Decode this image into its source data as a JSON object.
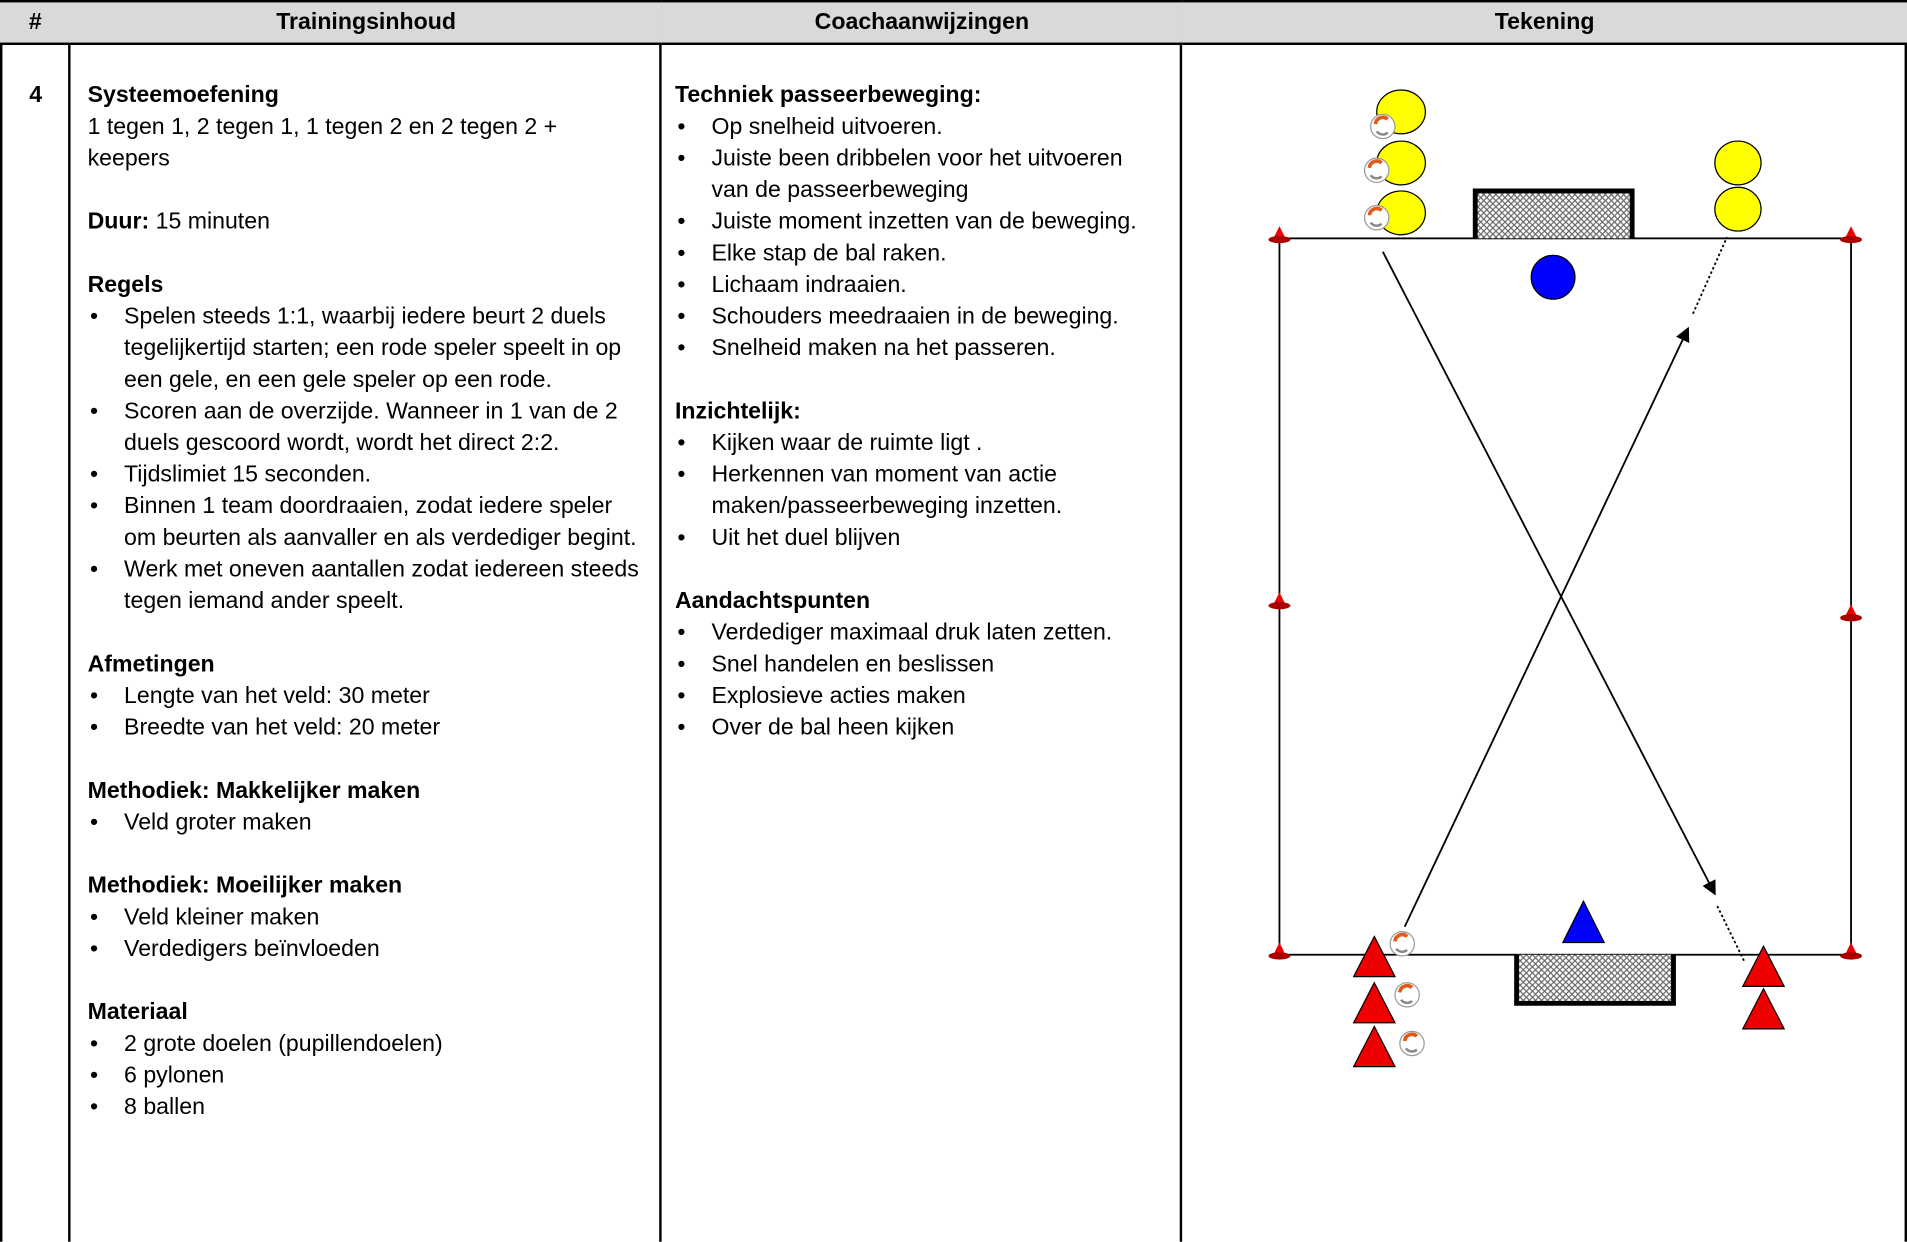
{
  "table": {
    "headers": [
      "#",
      "Trainingsinhoud",
      "Coachaanwijzingen",
      "Tekening"
    ],
    "row": {
      "number": "4",
      "training": {
        "title": "Systeemoefening",
        "subtitle": "1 tegen 1, 2 tegen 1, 1 tegen 2 en 2 tegen 2 + keepers",
        "duration_label": "Duur:",
        "duration": "15 minuten",
        "sections": [
          {
            "heading": "Regels",
            "items": [
              "Spelen steeds 1:1, waarbij iedere beurt 2 duels tegelijkertijd starten; een rode speler speelt in op een gele, en een gele speler op een rode.",
              "Scoren aan de overzijde. Wanneer in 1 van de 2 duels gescoord wordt, wordt het direct 2:2.",
              "Tijdslimiet 15 seconden.",
              "Binnen 1 team doordraaien, zodat iedere speler om beurten als aanvaller en als verdediger begint.",
              "Werk met oneven aantallen zodat iedereen steeds tegen iemand ander speelt."
            ]
          },
          {
            "heading": "Afmetingen",
            "items": [
              "Lengte van het veld: 30 meter",
              "Breedte van het veld: 20 meter"
            ]
          },
          {
            "heading": "Methodiek: Makkelijker maken",
            "items": [
              "Veld groter maken"
            ]
          },
          {
            "heading": "Methodiek: Moeilijker maken",
            "items": [
              "Veld kleiner maken",
              "Verdedigers beïnvloeden"
            ]
          },
          {
            "heading": "Materiaal",
            "items": [
              "2 grote doelen (pupillendoelen)",
              "6 pylonen",
              "8 ballen"
            ]
          }
        ]
      },
      "coach": {
        "sections": [
          {
            "heading": "Techniek passeerbeweging:",
            "items": [
              "Op snelheid uitvoeren.",
              "Juiste been dribbelen voor het uitvoeren van de passeerbeweging",
              "Juiste moment inzetten van de beweging.",
              "Elke stap de bal raken.",
              "Lichaam indraaien.",
              "Schouders meedraaien in de beweging.",
              "Snelheid maken na het passeren."
            ]
          },
          {
            "heading": "Inzichtelijk:",
            "items": [
              "Kijken waar de ruimte ligt .",
              "Herkennen van moment van actie maken/passeerbeweging inzetten.",
              "Uit het duel blijven"
            ]
          },
          {
            "heading": "Aandachtspunten",
            "items": [
              "Verdediger maximaal druk laten zetten.",
              "Snel handelen en beslissen",
              "Explosieve acties maken",
              "Over de bal heen kijken"
            ]
          }
        ]
      }
    }
  }
}
